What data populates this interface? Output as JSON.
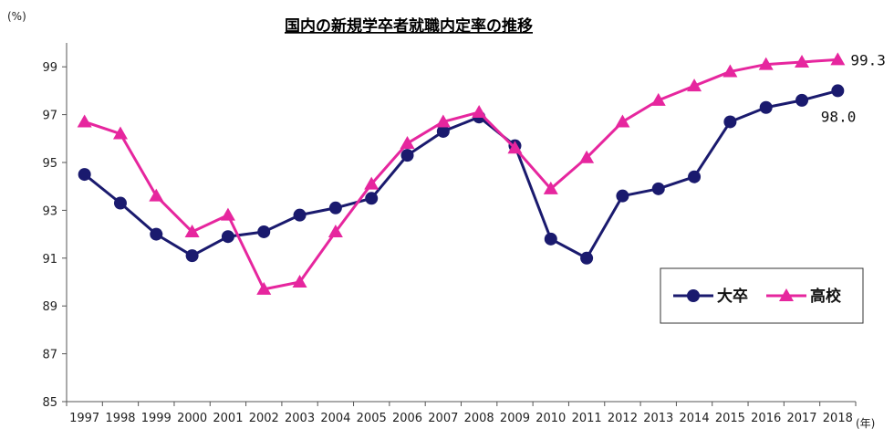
{
  "chart_data": {
    "type": "line",
    "title": "国内の新規学卒者就職内定率の推移",
    "y_unit": "(%)",
    "x_unit": "(年)",
    "categories": [
      "1997",
      "1998",
      "1999",
      "2000",
      "2001",
      "2002",
      "2003",
      "2004",
      "2005",
      "2006",
      "2007",
      "2008",
      "2009",
      "2010",
      "2011",
      "2012",
      "2013",
      "2014",
      "2015",
      "2016",
      "2017",
      "2018"
    ],
    "ylim": [
      85,
      100
    ],
    "yticks": [
      "85",
      "87",
      "89",
      "91",
      "93",
      "95",
      "97",
      "99"
    ],
    "series": [
      {
        "name": "大卒",
        "color": "#1a1a6e",
        "marker": "circle",
        "values": [
          94.5,
          93.3,
          92.0,
          91.1,
          91.9,
          92.1,
          92.8,
          93.1,
          93.5,
          95.3,
          96.3,
          96.9,
          95.7,
          91.8,
          91.0,
          93.6,
          93.9,
          94.4,
          96.7,
          97.3,
          97.6,
          98.0
        ],
        "end_label": "98.0"
      },
      {
        "name": "高校",
        "color": "#e6269e",
        "marker": "triangle",
        "values": [
          96.7,
          96.2,
          93.6,
          92.1,
          92.8,
          89.7,
          90.0,
          92.1,
          94.1,
          95.8,
          96.7,
          97.1,
          95.6,
          93.9,
          95.2,
          96.7,
          97.6,
          98.2,
          98.8,
          99.1,
          99.2,
          99.3
        ],
        "end_label": "99.3"
      }
    ],
    "grid": false,
    "legend_position": "bottom-right"
  }
}
